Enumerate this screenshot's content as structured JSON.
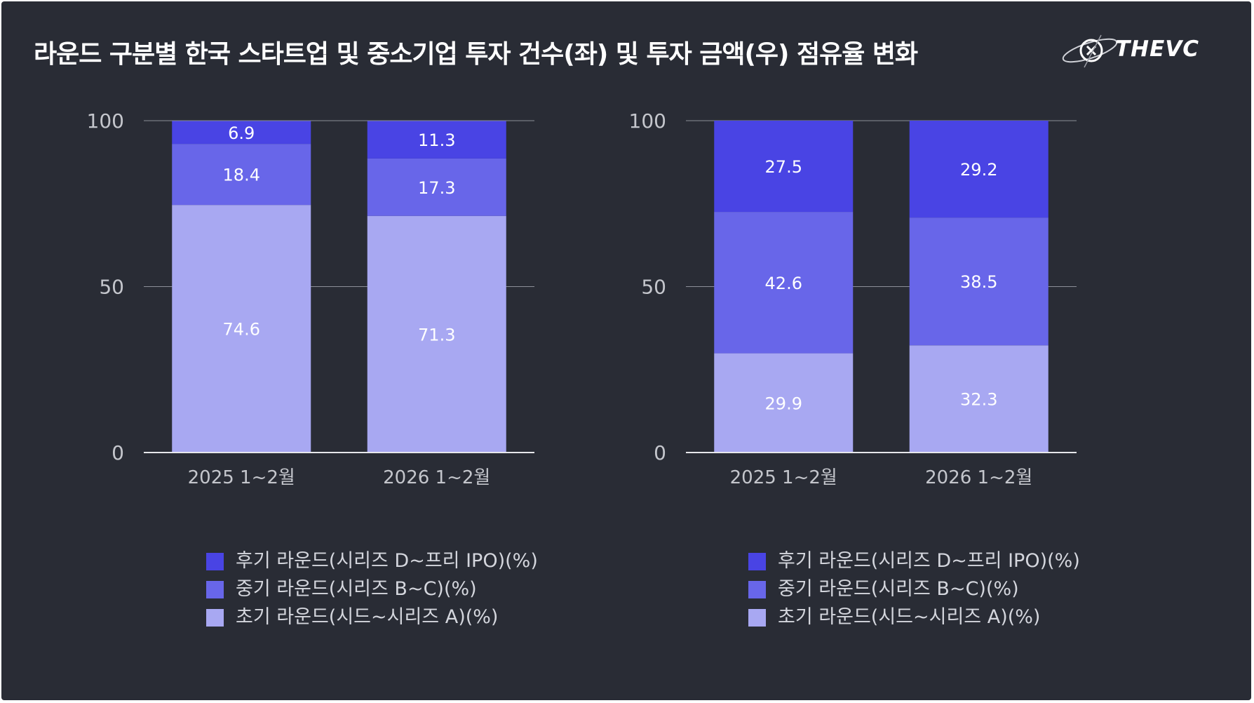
{
  "title": "라운드 구분별 한국 스타트업 및 중소기업 투자 건수(좌) 및 투자 금액(우) 점유율 변화",
  "logo": {
    "text": "THEVC",
    "icon": "thevc-planet-icon"
  },
  "colors": {
    "late": "#4944e4",
    "mid": "#6866e9",
    "early": "#a8a8f2",
    "background": "#292c35",
    "grid": "#8c8f98",
    "axis_text": "#c4c6cc"
  },
  "chart_data": [
    {
      "type": "bar",
      "stacked": true,
      "categories": [
        "2025 1~2월",
        "2026 1~2월"
      ],
      "ylim": [
        0,
        100
      ],
      "yticks": [
        "0",
        "50",
        "100"
      ],
      "series": [
        {
          "name": "초기 라운드(시드~시리즈 A)(%)",
          "key": "early",
          "values": [
            74.6,
            71.3
          ],
          "labels": [
            "74.6",
            "71.3"
          ]
        },
        {
          "name": "중기 라운드(시리즈 B~C)(%)",
          "key": "mid",
          "values": [
            18.4,
            17.3
          ],
          "labels": [
            "18.4",
            "17.3"
          ]
        },
        {
          "name": "후기 라운드(시리즈 D~프리 IPO)(%)",
          "key": "late",
          "values": [
            6.9,
            11.3
          ],
          "labels": [
            "6.9",
            "11.3"
          ]
        }
      ],
      "legend": [
        "후기 라운드(시리즈 D~프리 IPO)(%)",
        "중기 라운드(시리즈 B~C)(%)",
        "초기 라운드(시드~시리즈 A)(%)"
      ],
      "legend_position": "bottom"
    },
    {
      "type": "bar",
      "stacked": true,
      "categories": [
        "2025 1~2월",
        "2026 1~2월"
      ],
      "ylim": [
        0,
        100
      ],
      "yticks": [
        "0",
        "50",
        "100"
      ],
      "series": [
        {
          "name": "초기 라운드(시드~시리즈 A)(%)",
          "key": "early",
          "values": [
            29.9,
            32.3
          ],
          "labels": [
            "29.9",
            "32.3"
          ]
        },
        {
          "name": "중기 라운드(시리즈 B~C)(%)",
          "key": "mid",
          "values": [
            42.6,
            38.5
          ],
          "labels": [
            "42.6",
            "38.5"
          ]
        },
        {
          "name": "후기 라운드(시리즈 D~프리 IPO)(%)",
          "key": "late",
          "values": [
            27.5,
            29.2
          ],
          "labels": [
            "27.5",
            "29.2"
          ]
        }
      ],
      "legend": [
        "후기 라운드(시리즈 D~프리 IPO)(%)",
        "중기 라운드(시리즈 B~C)(%)",
        "초기 라운드(시드~시리즈 A)(%)"
      ],
      "legend_position": "bottom"
    }
  ]
}
